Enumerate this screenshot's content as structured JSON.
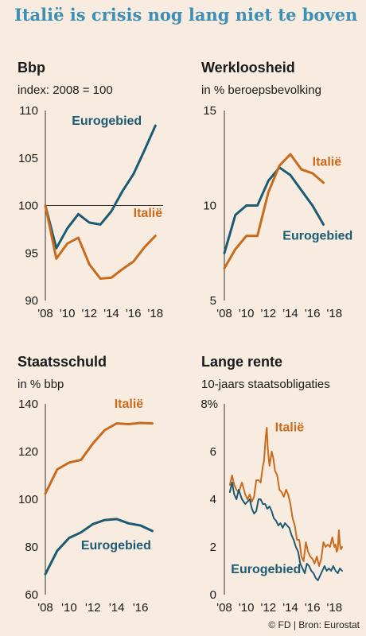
{
  "page": {
    "title": "Italië is crisis nog lang niet te boven",
    "credit": "© FD | Bron: Eurostat"
  },
  "colors": {
    "italy": "#c96a1c",
    "eurozone": "#1d5a73",
    "reference": "#333333"
  },
  "chart_data": [
    {
      "id": "bbp",
      "type": "line",
      "title": "Bbp",
      "subtitle": "index: 2008 = 100",
      "xlim": [
        2008,
        2018.7
      ],
      "ylim": [
        90,
        110
      ],
      "x_ticks": [
        2008,
        2010,
        2012,
        2014,
        2016,
        2018
      ],
      "x_tick_labels": [
        "'08",
        "'10",
        "'12",
        "'14",
        "'16",
        "'18"
      ],
      "y_ticks": [
        90,
        95,
        100,
        105,
        110
      ],
      "y_tick_labels": [
        "90",
        "95",
        "100",
        "105",
        "110"
      ],
      "reference_line": 100,
      "series": [
        {
          "name": "Eurogebied",
          "color": "#1d5a73",
          "x": [
            2008,
            2009,
            2010,
            2011,
            2012,
            2013,
            2014,
            2015,
            2016,
            2017,
            2018
          ],
          "y": [
            100,
            95.5,
            97.6,
            99.1,
            98.2,
            98.0,
            99.4,
            101.5,
            103.3,
            105.8,
            108.4
          ]
        },
        {
          "name": "Italië",
          "color": "#c96a1c",
          "x": [
            2008,
            2009,
            2010,
            2011,
            2012,
            2013,
            2014,
            2015,
            2016,
            2017,
            2018
          ],
          "y": [
            100,
            94.4,
            96.0,
            96.6,
            93.8,
            92.3,
            92.4,
            93.3,
            94.1,
            95.6,
            96.8
          ]
        }
      ],
      "labels": [
        {
          "text": "Eurogebied",
          "color": "#1d5a73",
          "x": 2010.4,
          "y": 108.5
        },
        {
          "text": "Italië",
          "color": "#c96a1c",
          "x": 2016.0,
          "y": 98.8
        }
      ]
    },
    {
      "id": "werkloosheid",
      "type": "line",
      "title": "Werkloosheid",
      "subtitle": "in % beroepsbevolking",
      "xlim": [
        2008,
        2018.7
      ],
      "ylim": [
        5,
        15
      ],
      "x_ticks": [
        2008,
        2010,
        2012,
        2014,
        2016,
        2018
      ],
      "x_tick_labels": [
        "'08",
        "'10",
        "'12",
        "'14",
        "'16",
        "'18"
      ],
      "y_ticks": [
        5,
        10,
        15
      ],
      "y_tick_labels": [
        "5",
        "10",
        "15"
      ],
      "series": [
        {
          "name": "Eurogebied",
          "color": "#1d5a73",
          "x": [
            2008,
            2009,
            2010,
            2011,
            2012,
            2013,
            2014,
            2015,
            2016,
            2017
          ],
          "y": [
            7.5,
            9.5,
            10.0,
            10.0,
            11.3,
            12.0,
            11.6,
            10.8,
            10.0,
            9.0
          ]
        },
        {
          "name": "Italië",
          "color": "#c96a1c",
          "x": [
            2008,
            2009,
            2010,
            2011,
            2012,
            2013,
            2014,
            2015,
            2016,
            2017
          ],
          "y": [
            6.7,
            7.7,
            8.4,
            8.4,
            10.7,
            12.1,
            12.7,
            11.9,
            11.7,
            11.2
          ]
        }
      ],
      "labels": [
        {
          "text": "Italië",
          "color": "#c96a1c",
          "x": 2016.0,
          "y": 12.1
        },
        {
          "text": "Eurogebied",
          "color": "#1d5a73",
          "x": 2013.3,
          "y": 8.2
        }
      ]
    },
    {
      "id": "staatsschuld",
      "type": "line",
      "title": "Staatsschuld",
      "subtitle": "in % bbp",
      "xlim": [
        2008,
        2017.9
      ],
      "ylim": [
        60,
        140
      ],
      "x_ticks": [
        2008,
        2010,
        2012,
        2014,
        2016
      ],
      "x_tick_labels": [
        "'08",
        "'10",
        "'12",
        "'14",
        "'16"
      ],
      "y_ticks": [
        60,
        80,
        100,
        120,
        140
      ],
      "y_tick_labels": [
        "60",
        "80",
        "100",
        "120",
        "140"
      ],
      "series": [
        {
          "name": "Italië",
          "color": "#c96a1c",
          "x": [
            2008,
            2009,
            2010,
            2011,
            2012,
            2013,
            2014,
            2015,
            2016,
            2017
          ],
          "y": [
            102.4,
            112.5,
            115.4,
            116.5,
            123.4,
            129.0,
            131.8,
            131.5,
            132.0,
            131.8
          ]
        },
        {
          "name": "Eurogebied",
          "color": "#1d5a73",
          "x": [
            2008,
            2009,
            2010,
            2011,
            2012,
            2013,
            2014,
            2015,
            2016,
            2017
          ],
          "y": [
            68.6,
            78.4,
            83.8,
            86.1,
            89.6,
            91.3,
            91.7,
            89.9,
            89.0,
            86.7
          ]
        }
      ],
      "labels": [
        {
          "text": "Italië",
          "color": "#c96a1c",
          "x": 2013.8,
          "y": 138.3
        },
        {
          "text": "Eurogebied",
          "color": "#1d5a73",
          "x": 2011.0,
          "y": 79.0
        }
      ]
    },
    {
      "id": "lange-rente",
      "type": "line",
      "title": "Lange rente",
      "subtitle": "10-jaars staatsobligaties",
      "xlim": [
        2008,
        2018.7
      ],
      "ylim": [
        0,
        8
      ],
      "y_top_label": "8%",
      "x_ticks": [
        2008,
        2010,
        2012,
        2014,
        2016,
        2018
      ],
      "x_tick_labels": [
        "'08",
        "'10",
        "'12",
        "'14",
        "'16",
        "'18"
      ],
      "y_ticks": [
        0,
        2,
        4,
        6
      ],
      "y_tick_labels": [
        "0",
        "2",
        "4",
        "6"
      ],
      "series": [
        {
          "name": "Italië",
          "color": "#c96a1c",
          "x": [
            2008.5,
            2008.7,
            2008.9,
            2009.1,
            2009.3,
            2009.6,
            2009.9,
            2010.1,
            2010.3,
            2010.5,
            2010.7,
            2010.9,
            2011.1,
            2011.3,
            2011.5,
            2011.6,
            2011.75,
            2011.85,
            2011.95,
            2012.1,
            2012.3,
            2012.45,
            2012.6,
            2012.8,
            2013.0,
            2013.2,
            2013.4,
            2013.6,
            2013.8,
            2014.0,
            2014.2,
            2014.4,
            2014.6,
            2014.8,
            2015.0,
            2015.2,
            2015.4,
            2015.6,
            2015.8,
            2016.0,
            2016.2,
            2016.4,
            2016.6,
            2016.8,
            2017.0,
            2017.2,
            2017.4,
            2017.6,
            2017.8,
            2018.0,
            2018.1,
            2018.2,
            2018.3,
            2018.4,
            2018.5,
            2018.6,
            2018.7
          ],
          "y": [
            4.6,
            5.0,
            4.6,
            4.4,
            4.3,
            4.7,
            4.2,
            4.0,
            4.2,
            3.9,
            4.1,
            4.8,
            4.8,
            4.7,
            5.4,
            5.6,
            6.6,
            7.0,
            6.1,
            5.4,
            6.0,
            5.7,
            5.2,
            5.0,
            4.4,
            4.3,
            4.1,
            4.4,
            4.2,
            3.8,
            3.2,
            2.9,
            2.3,
            2.3,
            1.6,
            1.4,
            2.2,
            1.8,
            1.6,
            1.5,
            1.3,
            1.6,
            1.2,
            1.5,
            2.2,
            2.0,
            2.1,
            2.0,
            2.4,
            2.0,
            2.1,
            1.8,
            1.9,
            2.7,
            2.1,
            1.9,
            2.0
          ]
        },
        {
          "name": "Eurogebied",
          "color": "#1d5a73",
          "x": [
            2008.5,
            2008.7,
            2008.9,
            2009.1,
            2009.3,
            2009.6,
            2009.9,
            2010.1,
            2010.3,
            2010.5,
            2010.7,
            2010.9,
            2011.1,
            2011.3,
            2011.5,
            2011.7,
            2011.9,
            2012.1,
            2012.3,
            2012.5,
            2012.7,
            2012.9,
            2013.1,
            2013.3,
            2013.5,
            2013.7,
            2013.9,
            2014.1,
            2014.3,
            2014.5,
            2014.7,
            2014.9,
            2015.1,
            2015.3,
            2015.5,
            2015.7,
            2015.9,
            2016.1,
            2016.3,
            2016.5,
            2016.7,
            2016.9,
            2017.1,
            2017.3,
            2017.5,
            2017.7,
            2017.9,
            2018.1,
            2018.3,
            2018.5,
            2018.7
          ],
          "y": [
            4.3,
            4.7,
            4.2,
            4.0,
            4.4,
            4.0,
            3.8,
            3.9,
            4.0,
            3.6,
            3.4,
            3.5,
            4.0,
            4.0,
            3.8,
            3.8,
            3.6,
            3.7,
            3.5,
            3.2,
            3.1,
            2.9,
            3.0,
            2.8,
            3.0,
            2.9,
            2.8,
            2.5,
            2.3,
            2.0,
            1.8,
            1.3,
            1.1,
            0.9,
            1.3,
            1.2,
            1.0,
            0.9,
            0.7,
            0.6,
            0.8,
            1.0,
            1.2,
            1.0,
            1.1,
            1.0,
            1.2,
            1.0,
            0.9,
            1.1,
            1.0
          ]
        }
      ],
      "labels": [
        {
          "text": "Italië",
          "color": "#c96a1c",
          "x": 2012.6,
          "y": 6.85
        },
        {
          "text": "Eurogebied",
          "color": "#1d5a73",
          "x": 2008.6,
          "y": 0.9
        }
      ]
    }
  ]
}
